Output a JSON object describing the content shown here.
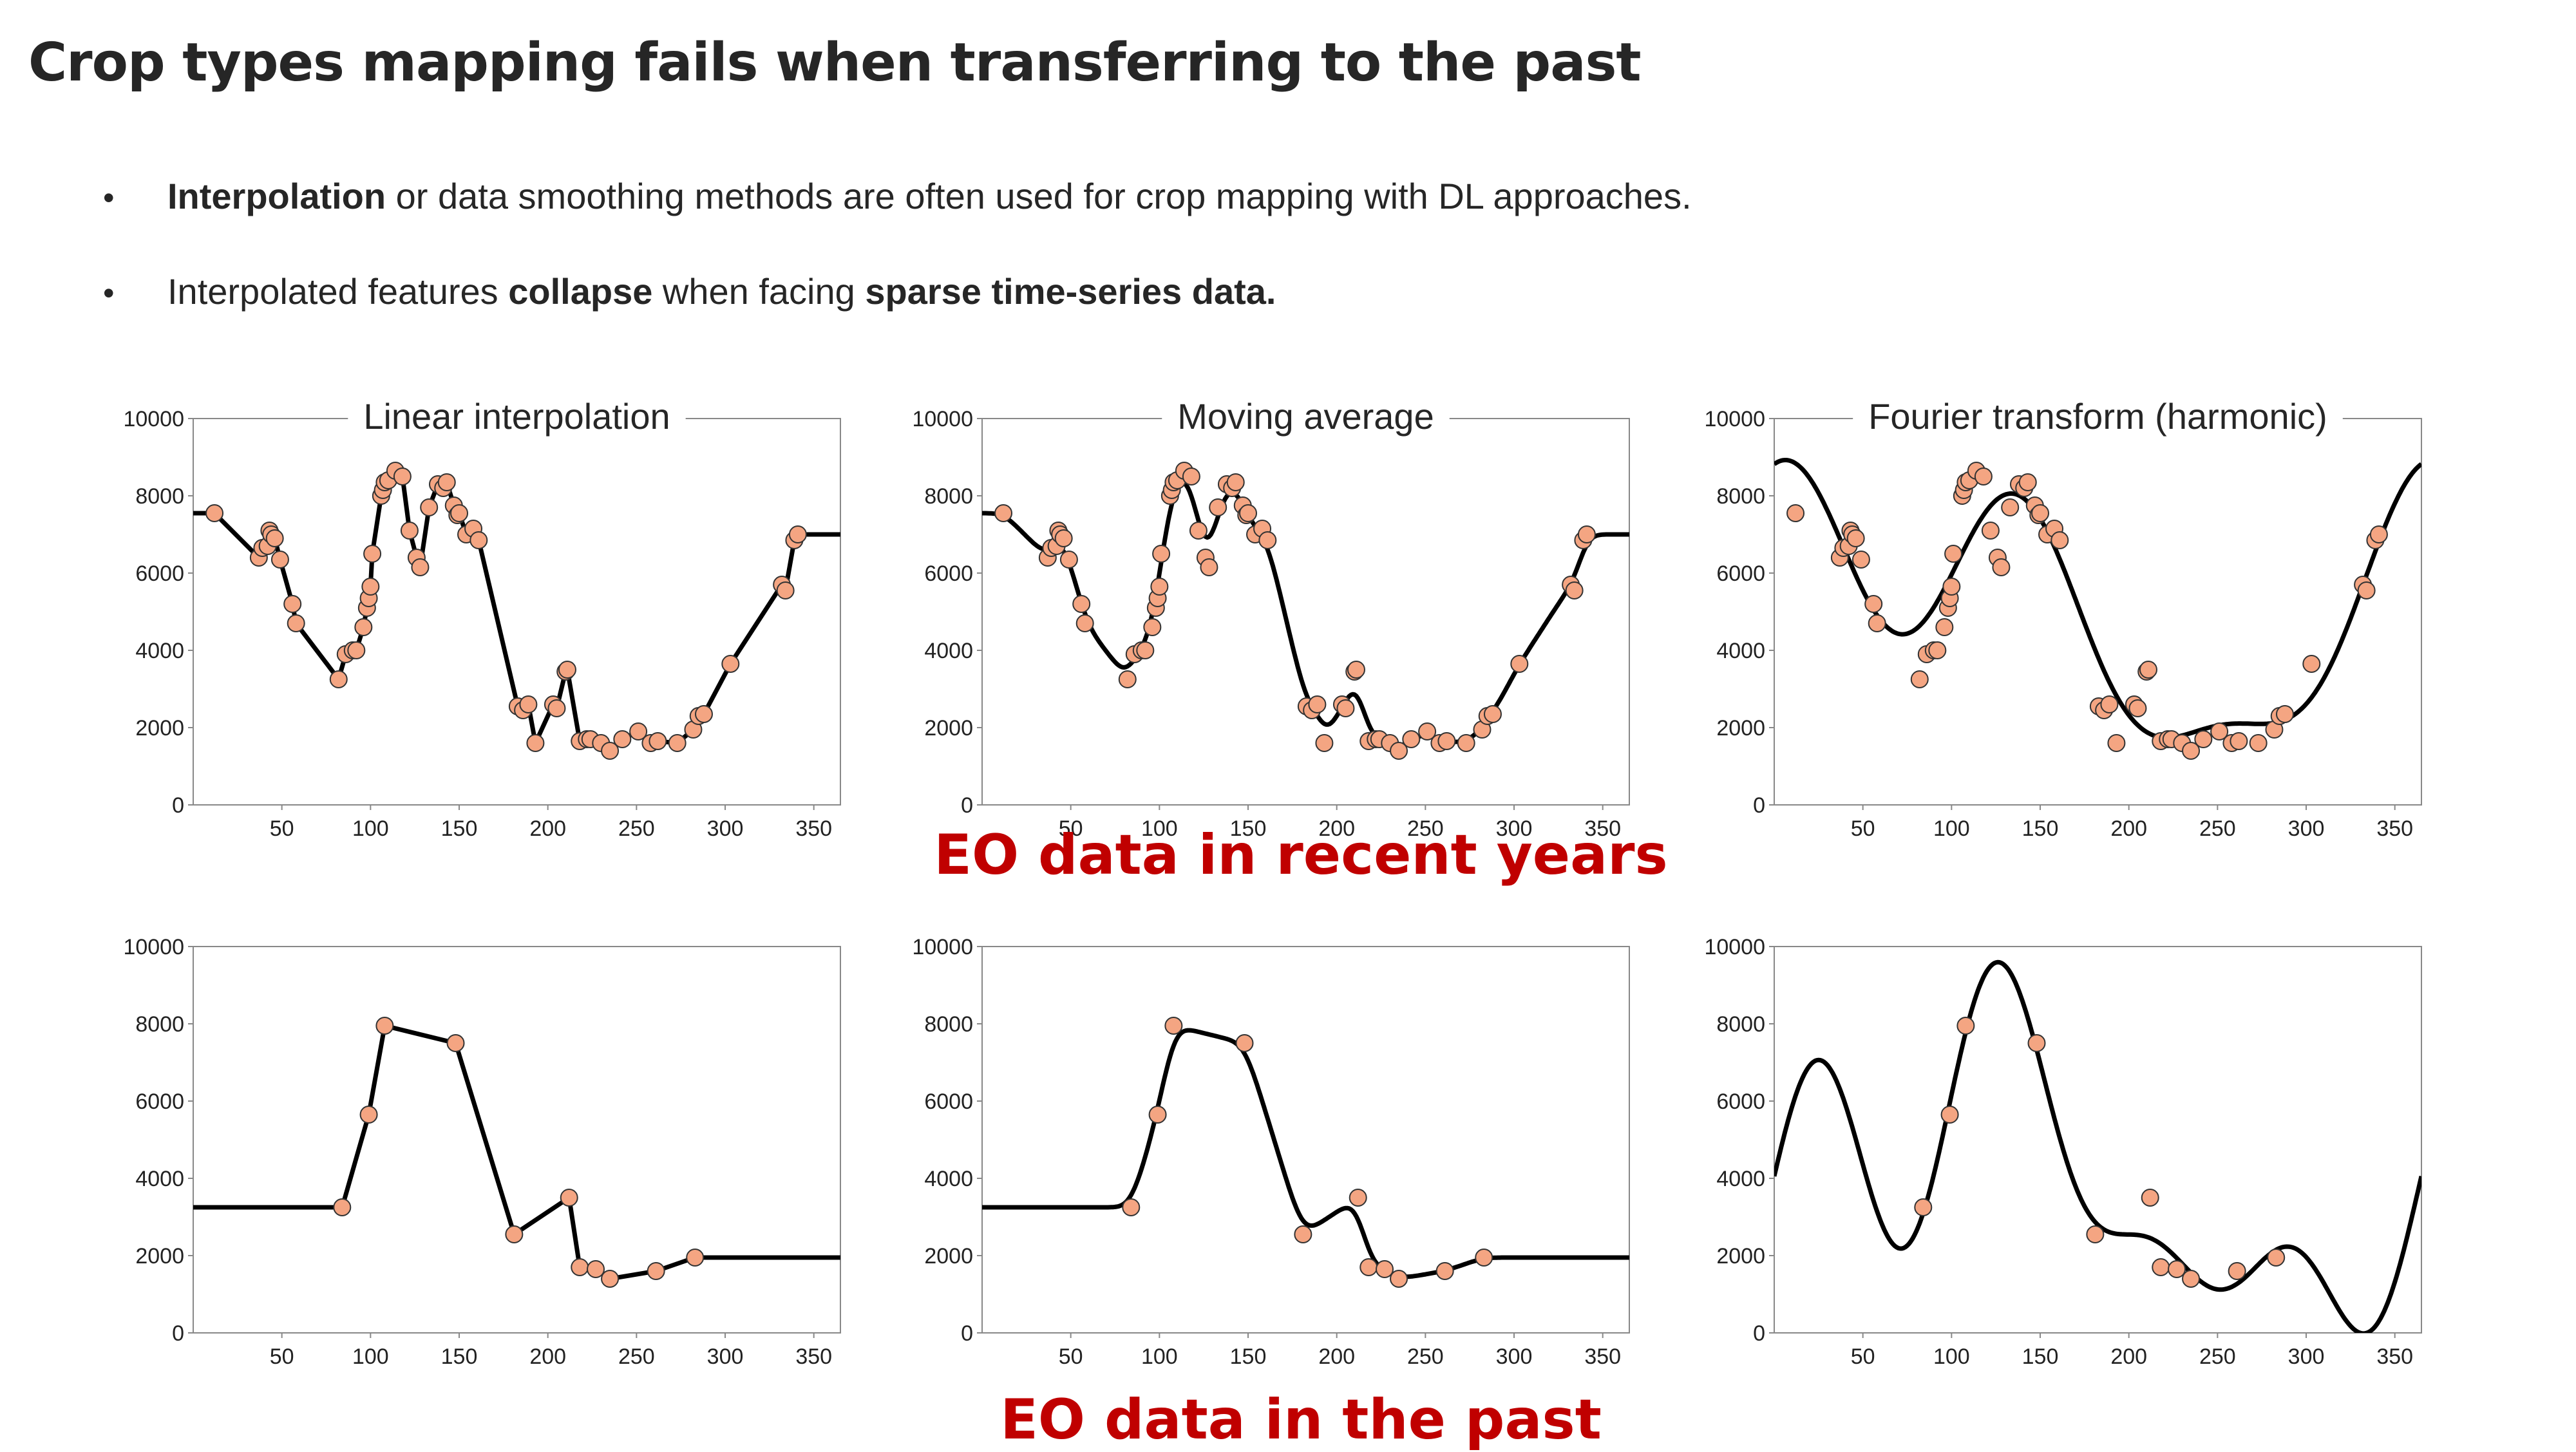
{
  "slide": {
    "title": "Crop types mapping fails when transferring to the past",
    "bullets": [
      {
        "parts": [
          {
            "text": "Interpolation",
            "bold": true
          },
          {
            "text": " or data smoothing methods are often used for crop mapping with DL approaches.",
            "bold": false
          }
        ]
      },
      {
        "parts": [
          {
            "text": "Interpolated features ",
            "bold": false
          },
          {
            "text": "collapse",
            "bold": true
          },
          {
            "text": " when facing ",
            "bold": false
          },
          {
            "text": "sparse time-series data.",
            "bold": true
          }
        ]
      }
    ],
    "captions": {
      "recent": "EO data in recent years",
      "past": "EO data in the past"
    }
  },
  "colors": {
    "points_fill": "#f4a582",
    "points_stroke": "#333333",
    "curve": "#000000",
    "caption": "#c00000"
  },
  "chart_data": [
    {
      "type": "line",
      "title": "Linear interpolation",
      "method": "linear",
      "dataset": "recent",
      "xlim": [
        0,
        365
      ],
      "ylim": [
        0,
        10000
      ],
      "xticks": [
        50,
        100,
        150,
        200,
        250,
        300,
        350
      ],
      "yticks": [
        0,
        2000,
        4000,
        6000,
        8000,
        10000
      ]
    },
    {
      "type": "line",
      "title": "Moving average",
      "method": "moving_average",
      "dataset": "recent",
      "xlim": [
        0,
        365
      ],
      "ylim": [
        0,
        10000
      ],
      "xticks": [
        50,
        100,
        150,
        200,
        250,
        300,
        350
      ],
      "yticks": [
        0,
        2000,
        4000,
        6000,
        8000,
        10000
      ]
    },
    {
      "type": "line",
      "title": "Fourier transform (harmonic)",
      "method": "harmonic",
      "dataset": "recent",
      "xlim": [
        0,
        365
      ],
      "ylim": [
        0,
        10000
      ],
      "xticks": [
        50,
        100,
        150,
        200,
        250,
        300,
        350
      ],
      "yticks": [
        0,
        2000,
        4000,
        6000,
        8000,
        10000
      ]
    },
    {
      "type": "line",
      "title": "",
      "method": "linear",
      "dataset": "past",
      "xlim": [
        0,
        365
      ],
      "ylim": [
        0,
        10000
      ],
      "xticks": [
        50,
        100,
        150,
        200,
        250,
        300,
        350
      ],
      "yticks": [
        0,
        2000,
        4000,
        6000,
        8000,
        10000
      ]
    },
    {
      "type": "line",
      "title": "",
      "method": "moving_average",
      "dataset": "past",
      "xlim": [
        0,
        365
      ],
      "ylim": [
        0,
        10000
      ],
      "xticks": [
        50,
        100,
        150,
        200,
        250,
        300,
        350
      ],
      "yticks": [
        0,
        2000,
        4000,
        6000,
        8000,
        10000
      ]
    },
    {
      "type": "line",
      "title": "",
      "method": "harmonic",
      "dataset": "past",
      "xlim": [
        0,
        365
      ],
      "ylim": [
        0,
        10000
      ],
      "xticks": [
        50,
        100,
        150,
        200,
        250,
        300,
        350
      ],
      "yticks": [
        0,
        2000,
        4000,
        6000,
        8000,
        10000
      ]
    }
  ],
  "datasets": {
    "recent": {
      "x": [
        12,
        37,
        39,
        42,
        43,
        44,
        46,
        49,
        56,
        58,
        82,
        86,
        90,
        92,
        96,
        98,
        99,
        100,
        101,
        106,
        107,
        108,
        110,
        114,
        118,
        122,
        126,
        128,
        133,
        138,
        141,
        143,
        147,
        149,
        150,
        154,
        158,
        161,
        183,
        186,
        189,
        193,
        203,
        205,
        210,
        211,
        218,
        222,
        224,
        230,
        235,
        242,
        251,
        258,
        262,
        273,
        282,
        285,
        288,
        303,
        332,
        334,
        339,
        341
      ],
      "y": [
        7550,
        6400,
        6650,
        6700,
        7100,
        7000,
        6900,
        6350,
        5200,
        4700,
        3250,
        3900,
        4000,
        4000,
        4600,
        5100,
        5350,
        5650,
        6500,
        8000,
        8150,
        8350,
        8400,
        8650,
        8500,
        7100,
        6400,
        6150,
        7700,
        8300,
        8200,
        8350,
        7750,
        7500,
        7550,
        7000,
        7150,
        6850,
        2550,
        2450,
        2600,
        1600,
        2600,
        2500,
        3450,
        3500,
        1650,
        1700,
        1700,
        1600,
        1400,
        1700,
        1900,
        1600,
        1650,
        1600,
        1950,
        2300,
        2350,
        3650,
        5700,
        5550,
        6850,
        7000
      ]
    },
    "past": {
      "x": [
        84,
        99,
        108,
        148,
        181,
        212,
        218,
        227,
        235,
        261,
        283
      ],
      "y": [
        3250,
        5650,
        7950,
        7500,
        2550,
        3500,
        1700,
        1650,
        1400,
        1600,
        1950
      ]
    }
  }
}
